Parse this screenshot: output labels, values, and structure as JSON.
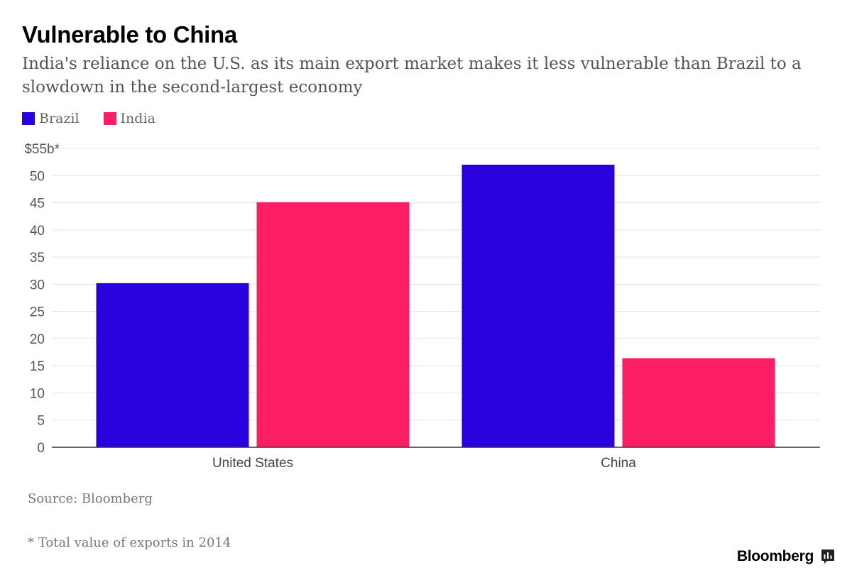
{
  "header": {
    "title": "Vulnerable to China",
    "subtitle": "India's reliance on the U.S. as its main export market makes it less vulnerable than Brazil to a slowdown in the second-largest economy"
  },
  "legend": [
    {
      "label": "Brazil",
      "color": "#2a00dc"
    },
    {
      "label": "India",
      "color": "#fc1e64"
    }
  ],
  "chart_data": {
    "type": "bar",
    "title": "Vulnerable to China",
    "subtitle": "India's reliance on the U.S. as its main export market makes it less vulnerable than Brazil to a slowdown in the second-largest economy",
    "categories": [
      "United States",
      "China"
    ],
    "series": [
      {
        "name": "Brazil",
        "values": [
          30.2,
          52.0
        ],
        "color": "#2a00dc"
      },
      {
        "name": "India",
        "values": [
          45.1,
          16.4
        ],
        "color": "#fc1e64"
      }
    ],
    "ylim": [
      0,
      55
    ],
    "yticks": [
      0,
      5,
      10,
      15,
      20,
      25,
      30,
      35,
      40,
      45,
      50,
      55
    ],
    "ytick_labels": [
      "0",
      "5",
      "10",
      "15",
      "20",
      "25",
      "30",
      "35",
      "40",
      "45",
      "50",
      "$55b*"
    ],
    "xlabel": "",
    "ylabel": "",
    "grid": true,
    "legend_position": "top-left"
  },
  "footer": {
    "source": "Source: Bloomberg",
    "footnote": "* Total value of exports in 2014",
    "brand": "Bloomberg"
  }
}
